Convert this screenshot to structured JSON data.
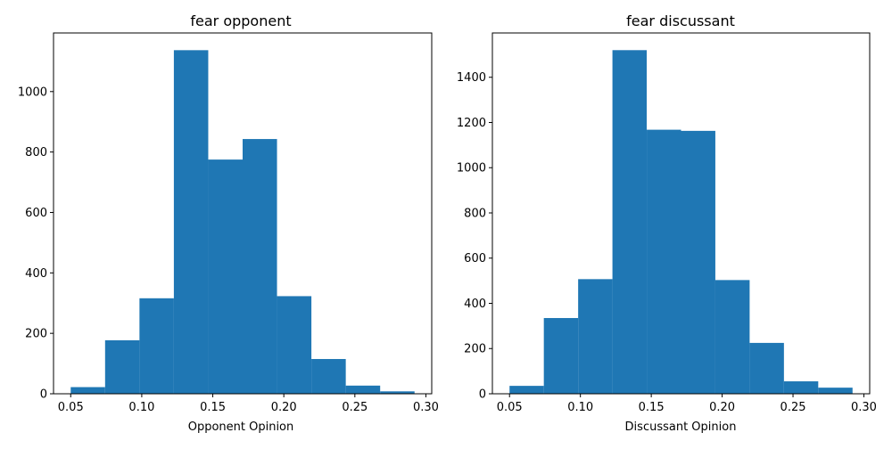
{
  "chart_data": [
    {
      "type": "bar",
      "subtype": "histogram",
      "title": "fear opponent",
      "xlabel": "Opponent Opinion",
      "ylabel": "",
      "bin_edges": [
        0.05,
        0.0742,
        0.0984,
        0.1226,
        0.1468,
        0.171,
        0.1952,
        0.2194,
        0.2436,
        0.2678,
        0.292
      ],
      "values": [
        22,
        177,
        316,
        1137,
        775,
        843,
        323,
        115,
        27,
        8
      ],
      "xlim": [
        0.0379,
        0.3041
      ],
      "ylim": [
        0,
        1194
      ],
      "xticks": [
        0.05,
        0.1,
        0.15,
        0.2,
        0.25,
        0.3
      ],
      "xtick_labels": [
        "0.05",
        "0.10",
        "0.15",
        "0.20",
        "0.25",
        "0.30"
      ],
      "yticks": [
        0,
        200,
        400,
        600,
        800,
        1000
      ],
      "ytick_labels": [
        "0",
        "200",
        "400",
        "600",
        "800",
        "1000"
      ],
      "color": "#1f77b4",
      "grid": false
    },
    {
      "type": "bar",
      "subtype": "histogram",
      "title": "fear discussant",
      "xlabel": "Discussant Opinion",
      "ylabel": "",
      "bin_edges": [
        0.05,
        0.0742,
        0.0984,
        0.1226,
        0.1468,
        0.171,
        0.1952,
        0.2194,
        0.2436,
        0.2678,
        0.292
      ],
      "values": [
        35,
        335,
        507,
        1520,
        1168,
        1163,
        503,
        225,
        55,
        27
      ],
      "xlim": [
        0.0379,
        0.3041
      ],
      "ylim": [
        0,
        1596
      ],
      "xticks": [
        0.05,
        0.1,
        0.15,
        0.2,
        0.25,
        0.3
      ],
      "xtick_labels": [
        "0.05",
        "0.10",
        "0.15",
        "0.20",
        "0.25",
        "0.30"
      ],
      "yticks": [
        0,
        200,
        400,
        600,
        800,
        1000,
        1200,
        1400
      ],
      "ytick_labels": [
        "0",
        "200",
        "400",
        "600",
        "800",
        "1000",
        "1200",
        "1400"
      ],
      "color": "#1f77b4",
      "grid": false
    }
  ]
}
